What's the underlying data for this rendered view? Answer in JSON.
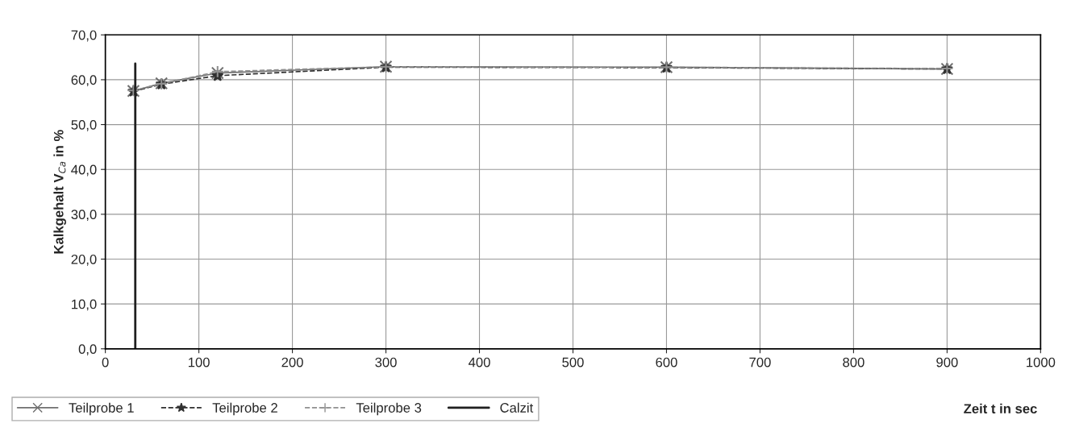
{
  "chart_data": {
    "type": "line",
    "xlabel": "Zeit t in sec",
    "ylabel": "Kalkgehalt V$_{Ca}$ in %",
    "xlim": [
      0,
      1000
    ],
    "xticks": [
      0,
      100,
      200,
      300,
      400,
      500,
      600,
      700,
      800,
      900,
      1000
    ],
    "ylim": [
      0,
      70
    ],
    "yticks": [
      {
        "value": 0,
        "label": "0,0"
      },
      {
        "value": 10,
        "label": "10,0"
      },
      {
        "value": 20,
        "label": "20,0"
      },
      {
        "value": 30,
        "label": "30,0"
      },
      {
        "value": 40,
        "label": "40,0"
      },
      {
        "value": 50,
        "label": "50,0"
      },
      {
        "value": 60,
        "label": "60,0"
      },
      {
        "value": 70,
        "label": "70,0"
      }
    ],
    "grid": true,
    "legend": "bottom left",
    "series": [
      {
        "name": "Teilprobe 1",
        "color": "#707070",
        "x": [
          30,
          60,
          120,
          300,
          600,
          900
        ],
        "values": [
          57.5,
          59.2,
          61.5,
          62.9,
          62.8,
          62.4
        ],
        "marker": "cross",
        "line_style": "solid"
      },
      {
        "name": "Teilprobe 2",
        "color": "#303030",
        "x": [
          30,
          60,
          120,
          300,
          600,
          900
        ],
        "values": [
          57.4,
          59.0,
          60.9,
          62.8,
          62.7,
          62.4
        ],
        "marker": "star",
        "line_style": "dashed"
      },
      {
        "name": "Teilprobe 3",
        "color": "#909090",
        "x": [
          30,
          60,
          120,
          300,
          600,
          900
        ],
        "values": [
          57.6,
          59.1,
          61.8,
          62.9,
          62.8,
          62.5
        ],
        "marker": "plus",
        "line_style": "dashed"
      },
      {
        "name": "Calzit",
        "color": "#202020",
        "x": [
          32,
          32
        ],
        "values": [
          0,
          63.6
        ],
        "marker": "none",
        "line_style": "solid"
      }
    ]
  }
}
